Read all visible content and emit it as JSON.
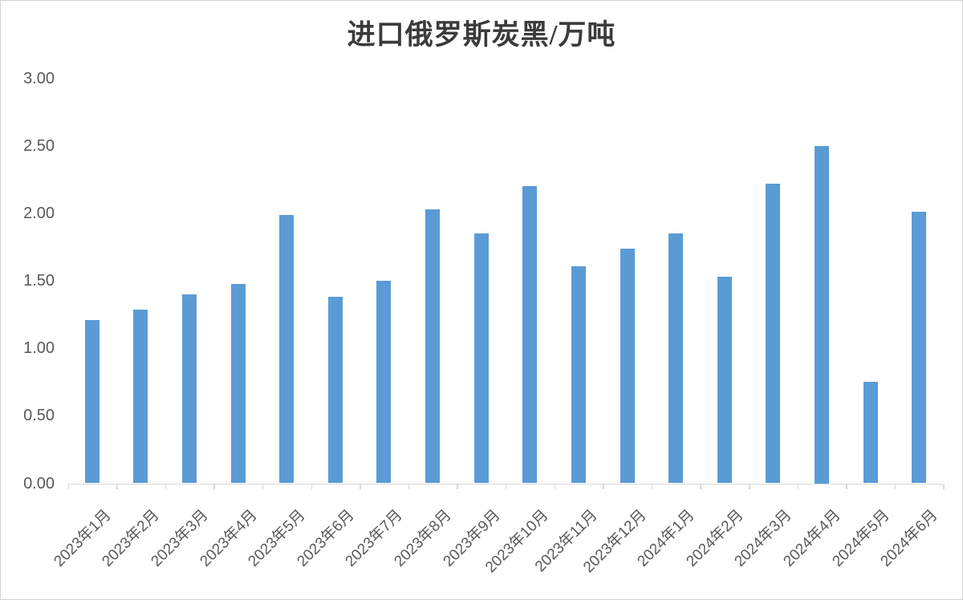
{
  "chart_data": {
    "type": "bar",
    "title": "进口俄罗斯炭黑/万吨",
    "xlabel": "",
    "ylabel": "",
    "categories": [
      "2023年1月",
      "2023年2月",
      "2023年3月",
      "2023年4月",
      "2023年5月",
      "2023年6月",
      "2023年7月",
      "2023年8月",
      "2023年9月",
      "2023年10月",
      "2023年11月",
      "2023年12月",
      "2024年1月",
      "2024年2月",
      "2024年3月",
      "2024年4月",
      "2024年5月",
      "2024年6月"
    ],
    "values": [
      1.21,
      1.29,
      1.4,
      1.48,
      1.99,
      1.38,
      1.5,
      2.03,
      1.85,
      2.2,
      1.61,
      1.74,
      1.85,
      1.53,
      2.22,
      2.5,
      0.75,
      2.01
    ],
    "ylim": [
      0,
      3
    ],
    "ytick_labels": [
      "0.00",
      "0.50",
      "1.00",
      "1.50",
      "2.00",
      "2.50",
      "3.00"
    ],
    "ytick_values": [
      0,
      0.5,
      1,
      1.5,
      2,
      2.5,
      3
    ],
    "grid": false,
    "legend": "none",
    "x_labels_rotation_deg": -45,
    "colors": {
      "bar": "#5b9bd5",
      "axis": "#d9d9d9",
      "tick_label": "#595959",
      "title": "#3b3b3b",
      "border": "#d4d4d4"
    }
  }
}
